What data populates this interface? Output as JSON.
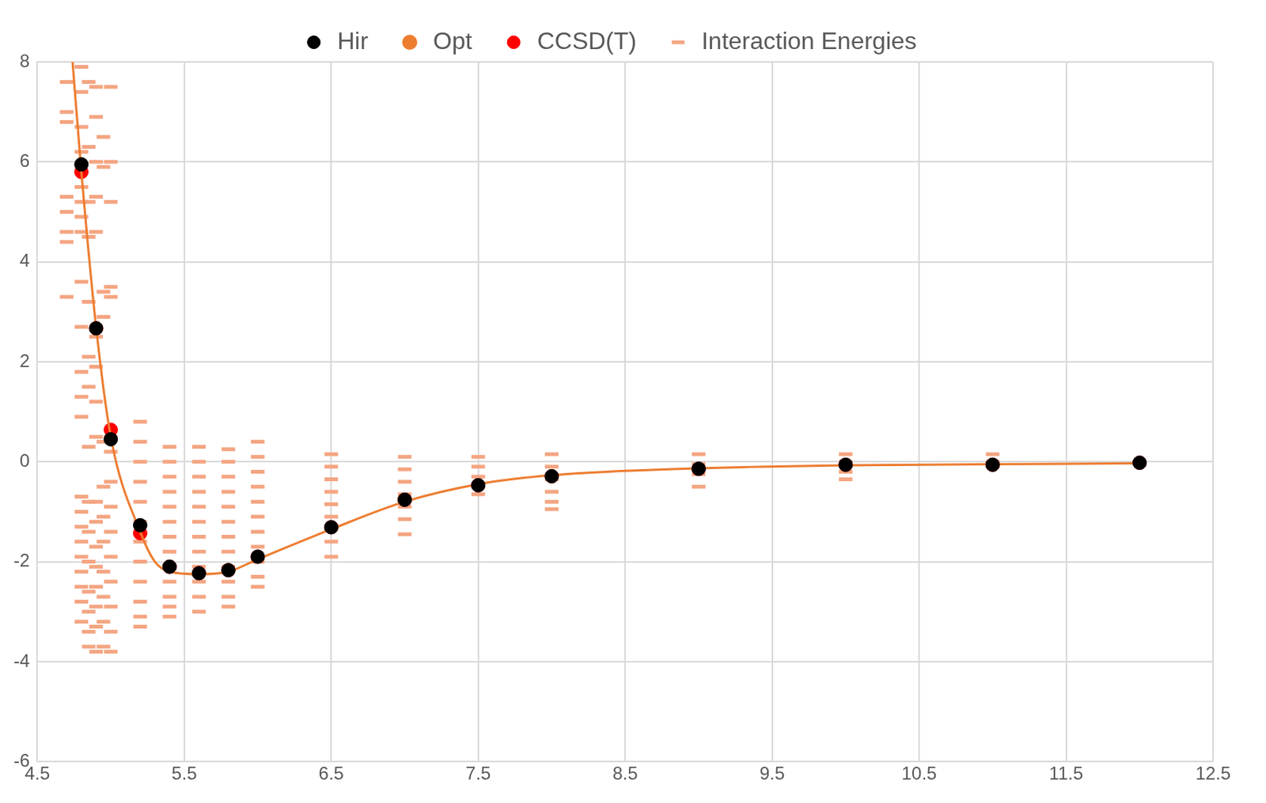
{
  "chart_data": {
    "type": "scatter",
    "xlim": [
      4.5,
      12.5
    ],
    "xticks": [
      4.5,
      5.5,
      6.5,
      7.5,
      8.5,
      9.5,
      10.5,
      11.5,
      12.5
    ],
    "ylim": [
      -6,
      8
    ],
    "yticks": [
      -6,
      -4,
      -2,
      0,
      2,
      4,
      6,
      8
    ],
    "grid": true,
    "legend": "top",
    "series": [
      {
        "name": "Interaction Energies",
        "type": "scatter",
        "marker": "dash",
        "color": "#f4a582",
        "x": [
          4.7,
          4.7,
          4.7,
          4.7,
          4.7,
          4.7,
          4.7,
          4.7,
          4.8,
          4.8,
          4.8,
          4.8,
          4.8,
          4.8,
          4.8,
          4.8,
          4.8,
          4.8,
          4.8,
          4.8,
          4.8,
          4.8,
          4.8,
          4.8,
          4.8,
          4.8,
          4.8,
          4.8,
          4.8,
          4.8,
          4.85,
          4.85,
          4.85,
          4.85,
          4.85,
          4.85,
          4.85,
          4.85,
          4.85,
          4.85,
          4.85,
          4.85,
          4.85,
          4.85,
          4.85,
          4.9,
          4.9,
          4.9,
          4.9,
          4.9,
          4.9,
          4.9,
          4.9,
          4.9,
          4.9,
          4.9,
          4.9,
          4.9,
          4.9,
          4.9,
          4.9,
          4.9,
          4.95,
          4.95,
          4.95,
          4.95,
          4.95,
          4.95,
          4.95,
          4.95,
          4.95,
          4.95,
          4.95,
          4.95,
          5.0,
          5.0,
          5.0,
          5.0,
          5.0,
          5.0,
          5.0,
          5.0,
          5.0,
          5.0,
          5.0,
          5.0,
          5.0,
          5.0,
          5.0,
          5.2,
          5.2,
          5.2,
          5.2,
          5.2,
          5.2,
          5.2,
          5.2,
          5.2,
          5.2,
          5.2,
          5.2,
          5.4,
          5.4,
          5.4,
          5.4,
          5.4,
          5.4,
          5.4,
          5.4,
          5.4,
          5.4,
          5.4,
          5.4,
          5.4,
          5.6,
          5.6,
          5.6,
          5.6,
          5.6,
          5.6,
          5.6,
          5.6,
          5.6,
          5.6,
          5.6,
          5.6,
          5.8,
          5.8,
          5.8,
          5.8,
          5.8,
          5.8,
          5.8,
          5.8,
          5.8,
          5.8,
          5.8,
          5.8,
          6.0,
          6.0,
          6.0,
          6.0,
          6.0,
          6.0,
          6.0,
          6.0,
          6.0,
          6.0,
          6.0,
          6.5,
          6.5,
          6.5,
          6.5,
          6.5,
          6.5,
          6.5,
          6.5,
          6.5,
          7.0,
          7.0,
          7.0,
          7.0,
          7.0,
          7.0,
          7.0,
          7.5,
          7.5,
          7.5,
          7.5,
          7.5,
          8.0,
          8.0,
          8.0,
          8.0,
          8.0,
          8.0,
          9.0,
          9.0,
          9.0,
          9.0,
          10.0,
          10.0,
          10.0,
          10.0,
          11.0,
          11.0,
          11.0
        ],
        "values": [
          7.6,
          7.0,
          6.8,
          5.3,
          5.0,
          4.6,
          4.4,
          3.3,
          7.9,
          7.4,
          6.7,
          6.2,
          5.5,
          5.2,
          4.9,
          4.6,
          3.6,
          2.7,
          1.8,
          1.3,
          0.9,
          -0.7,
          -1.0,
          -1.3,
          -1.6,
          -1.9,
          -2.2,
          -2.5,
          -2.8,
          -3.2,
          7.6,
          6.3,
          5.2,
          4.5,
          3.2,
          2.1,
          1.5,
          0.3,
          -0.8,
          -1.4,
          -2.0,
          -2.6,
          -3.0,
          -3.4,
          -3.7,
          7.5,
          6.9,
          6.0,
          5.3,
          4.6,
          2.5,
          1.9,
          1.2,
          0.5,
          -0.8,
          -1.2,
          -1.7,
          -2.1,
          -2.5,
          -2.9,
          -3.3,
          -3.8,
          6.5,
          5.9,
          3.4,
          2.9,
          0.4,
          -0.5,
          -1.1,
          -1.6,
          -2.2,
          -2.7,
          -3.2,
          -3.7,
          7.5,
          6.0,
          5.2,
          3.5,
          3.3,
          0.5,
          0.2,
          -0.4,
          -0.9,
          -1.4,
          -1.9,
          -2.4,
          -2.9,
          -3.4,
          -3.8,
          0.8,
          0.4,
          0.0,
          -0.4,
          -0.8,
          -1.2,
          -1.6,
          -2.0,
          -2.4,
          -2.8,
          -3.1,
          -3.3,
          0.3,
          0.0,
          -0.3,
          -0.6,
          -0.9,
          -1.2,
          -1.5,
          -1.8,
          -2.1,
          -2.4,
          -2.7,
          -2.9,
          -3.1,
          0.3,
          0.0,
          -0.3,
          -0.6,
          -0.9,
          -1.2,
          -1.5,
          -1.8,
          -2.1,
          -2.4,
          -2.7,
          -3.0,
          0.25,
          0.0,
          -0.3,
          -0.6,
          -0.9,
          -1.2,
          -1.5,
          -1.8,
          -2.1,
          -2.4,
          -2.7,
          -2.9,
          0.4,
          0.1,
          -0.2,
          -0.5,
          -0.8,
          -1.1,
          -1.4,
          -1.7,
          -2.0,
          -2.3,
          -2.5,
          0.15,
          -0.1,
          -0.35,
          -0.6,
          -0.85,
          -1.1,
          -1.35,
          -1.6,
          -1.9,
          0.1,
          -0.15,
          -0.4,
          -0.65,
          -0.9,
          -1.15,
          -1.45,
          0.1,
          -0.1,
          -0.3,
          -0.5,
          -0.65,
          0.15,
          -0.1,
          -0.35,
          -0.6,
          -0.8,
          -0.95,
          0.15,
          -0.05,
          -0.25,
          -0.5,
          0.15,
          0.0,
          -0.2,
          -0.35,
          0.15,
          0.0,
          -0.1
        ]
      },
      {
        "name": "CCSD(T)",
        "type": "scatter",
        "marker": "circle",
        "color": "#ff0000",
        "x": [
          4.8,
          4.9,
          5.0,
          5.2,
          5.4,
          5.6,
          5.8,
          6.0,
          6.5,
          7.0,
          7.5,
          8.0,
          9.0,
          10.0,
          11.0,
          12.0
        ],
        "values": [
          5.8,
          2.67,
          0.64,
          -1.43,
          -2.1,
          -2.23,
          -2.17,
          -1.9,
          -1.31,
          -0.76,
          -0.47,
          -0.29,
          -0.14,
          -0.06,
          -0.06,
          -0.02
        ]
      },
      {
        "name": "Opt",
        "type": "line",
        "marker": "none",
        "line_style": "solid",
        "color": "#ed7d31",
        "x": [
          4.74,
          4.8,
          4.9,
          5.0,
          5.2,
          5.3,
          5.4,
          5.6,
          5.8,
          6.0,
          6.5,
          7.0,
          7.5,
          8.0,
          9.0,
          10.0,
          11.0,
          12.0
        ],
        "values": [
          8,
          5.8,
          2.7,
          0.5,
          -1.4,
          -2.0,
          -2.2,
          -2.25,
          -2.2,
          -1.95,
          -1.35,
          -0.8,
          -0.45,
          -0.27,
          -0.13,
          -0.07,
          -0.05,
          -0.03
        ]
      },
      {
        "name": "Hir",
        "type": "scatter",
        "marker": "circle",
        "color": "#000000",
        "x": [
          4.8,
          4.9,
          5.0,
          5.2,
          5.4,
          5.6,
          5.8,
          6.0,
          6.5,
          7.0,
          7.5,
          8.0,
          9.0,
          10.0,
          11.0,
          12.0
        ],
        "values": [
          5.95,
          2.67,
          0.45,
          -1.27,
          -2.1,
          -2.23,
          -2.17,
          -1.9,
          -1.31,
          -0.76,
          -0.47,
          -0.29,
          -0.14,
          -0.06,
          -0.06,
          -0.02
        ]
      }
    ]
  }
}
